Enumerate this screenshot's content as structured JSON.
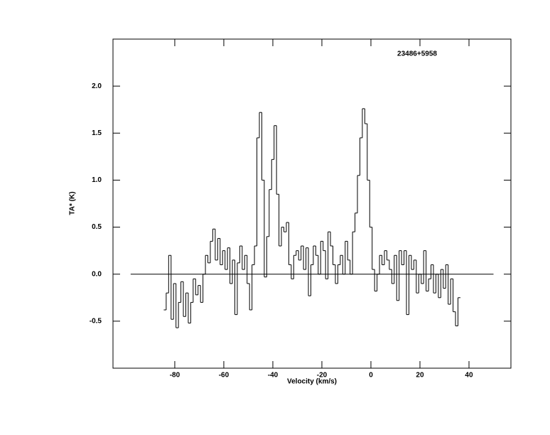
{
  "chart_data": {
    "type": "step",
    "annotation": "23486+5958",
    "x_label": "Velocity (km/s)",
    "y_label": "TA* (K)",
    "xlim": [
      -105.2,
      57.1
    ],
    "ylim": [
      -1,
      2.5
    ],
    "xticks": [
      -80,
      -60,
      -40,
      -20,
      0,
      20,
      40
    ],
    "yticks": [
      -0.5,
      {
        "value": 0,
        "label": "0.0"
      },
      0.5,
      {
        "value": 1,
        "label": "1.0"
      },
      1.5,
      {
        "value": 2,
        "label": "2.0"
      }
    ],
    "baseline": {
      "y": 0,
      "x": [
        -98,
        50
      ]
    },
    "color": "#000000",
    "x": [
      -84,
      -83,
      -82,
      -81,
      -80,
      -79,
      -78,
      -77,
      -76,
      -75,
      -74,
      -73,
      -72,
      -71,
      -70,
      -69,
      -68,
      -67,
      -66,
      -65,
      -64,
      -63,
      -62,
      -61,
      -60,
      -59,
      -58,
      -57,
      -56,
      -55,
      -54,
      -53,
      -52,
      -51,
      -50,
      -49,
      -48,
      -47,
      -46,
      -45,
      -44,
      -43,
      -42,
      -41,
      -40,
      -39,
      -38,
      -37,
      -36,
      -35,
      -34,
      -33,
      -32,
      -31,
      -30,
      -29,
      -28,
      -27,
      -26,
      -25,
      -24,
      -23,
      -22,
      -21,
      -20,
      -19,
      -18,
      -17,
      -16,
      -15,
      -14,
      -13,
      -12,
      -11,
      -10,
      -9,
      -8,
      -7,
      -6,
      -5,
      -4,
      -3,
      -2,
      -1,
      0,
      1,
      2,
      3,
      4,
      5,
      6,
      7,
      8,
      9,
      10,
      11,
      12,
      13,
      14,
      15,
      16,
      17,
      18,
      19,
      20,
      21,
      22,
      23,
      24,
      25,
      26,
      27,
      28,
      29,
      30,
      31,
      32,
      33,
      34,
      35,
      36
    ],
    "values": [
      -0.38,
      -0.2,
      0.2,
      -0.48,
      -0.1,
      -0.57,
      -0.3,
      -0.08,
      -0.45,
      -0.2,
      -0.52,
      -0.3,
      -0.05,
      -0.22,
      -0.12,
      -0.3,
      0.0,
      0.2,
      0.12,
      0.35,
      0.48,
      0.15,
      0.38,
      0.1,
      0.25,
      0.05,
      0.28,
      -0.1,
      0.15,
      -0.43,
      0.12,
      0.3,
      0.05,
      0.2,
      -0.1,
      -0.38,
      0.1,
      0.3,
      1.45,
      1.72,
      1.0,
      -0.03,
      0.4,
      0.9,
      1.22,
      1.58,
      0.85,
      0.3,
      0.5,
      0.45,
      0.55,
      0.1,
      -0.05,
      0.2,
      0.25,
      0.15,
      0.3,
      0.05,
      0.28,
      -0.23,
      0.1,
      0.3,
      0.2,
      0.0,
      0.35,
      0.25,
      -0.05,
      0.45,
      0.3,
      0.1,
      -0.1,
      0.1,
      0.2,
      0.0,
      0.35,
      0.15,
      0.0,
      0.45,
      0.65,
      1.05,
      1.45,
      1.76,
      1.6,
      1.0,
      0.5,
      0.05,
      -0.18,
      0.0,
      0.2,
      0.1,
      0.25,
      0.15,
      0.05,
      -0.1,
      0.2,
      -0.28,
      0.25,
      0.1,
      0.25,
      -0.43,
      0.2,
      0.05,
      0.15,
      -0.2,
      0.0,
      -0.1,
      0.25,
      -0.18,
      -0.05,
      0.1,
      -0.2,
      0.0,
      -0.25,
      0.05,
      -0.15,
      0.1,
      -0.32,
      -0.05,
      -0.4,
      -0.55,
      -0.25
    ]
  }
}
